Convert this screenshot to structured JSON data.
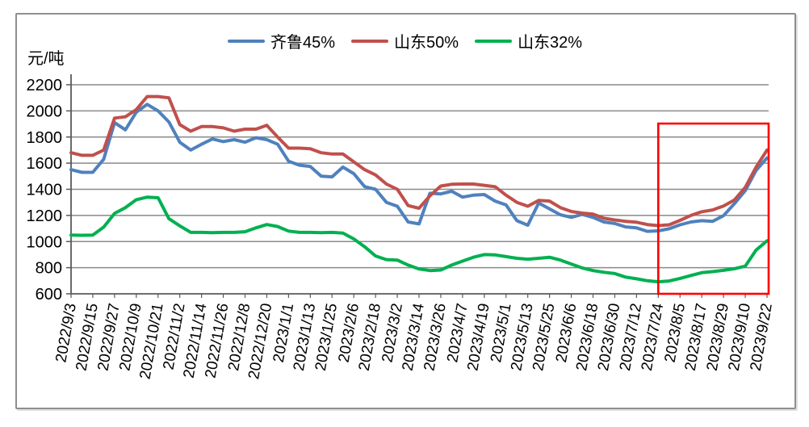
{
  "chart": {
    "unit_label": "元/吨",
    "colors": {
      "qilu45": "#4f81bd",
      "shandong50": "#c0504d",
      "shandong32": "#00b050",
      "highlight_box": "#ff0000",
      "gridline": "#8a8a8a",
      "axis": "#595959",
      "figure_border": "#8f8f8f"
    },
    "y_axis": {
      "min": 600,
      "max": 2200,
      "step": 200,
      "tick_labels": [
        "2200",
        "2000",
        "1800",
        "1600",
        "1400",
        "1200",
        "1000",
        "800",
        "600"
      ]
    },
    "x_axis_visible_labels": [
      "2022/9/3",
      "2022/9/15",
      "2022/9/27",
      "2022/10/9",
      "2022/10/21",
      "2022/11/2",
      "2022/11/14",
      "2022/11/26",
      "2022/12/8",
      "2022/12/20",
      "2023/1/1",
      "2023/1/13",
      "2023/1/25",
      "2023/2/6",
      "2023/2/18",
      "2023/3/2",
      "2023/3/14",
      "2023/3/26",
      "2023/4/7",
      "2023/4/19",
      "2023/5/1",
      "2023/5/13",
      "2023/5/25",
      "2023/6/6",
      "2023/6/18",
      "2023/6/30",
      "2023/7/12",
      "2023/7/24",
      "2023/8/5",
      "2023/8/17",
      "2023/8/29",
      "2023/9/10",
      "2023/9/22"
    ],
    "highlight_region": {
      "from": "2023/7/24",
      "to": "2023/9/22",
      "top_value": 1903,
      "bottom_value": 600
    }
  },
  "chart_data": {
    "type": "line",
    "title": "",
    "ylabel": "元/吨",
    "xlabel": "",
    "ylim": [
      600,
      2200
    ],
    "y_step": 200,
    "grid": true,
    "legend_position": "top-center",
    "x": [
      "2022/9/3",
      "2022/9/9",
      "2022/9/15",
      "2022/9/21",
      "2022/9/27",
      "2022/10/3",
      "2022/10/9",
      "2022/10/15",
      "2022/10/21",
      "2022/10/27",
      "2022/11/2",
      "2022/11/8",
      "2022/11/14",
      "2022/11/20",
      "2022/11/26",
      "2022/12/2",
      "2022/12/8",
      "2022/12/14",
      "2022/12/20",
      "2022/12/26",
      "2023/1/1",
      "2023/1/7",
      "2023/1/13",
      "2023/1/19",
      "2023/1/25",
      "2023/1/31",
      "2023/2/6",
      "2023/2/12",
      "2023/2/18",
      "2023/2/24",
      "2023/3/2",
      "2023/3/8",
      "2023/3/14",
      "2023/3/20",
      "2023/3/26",
      "2023/4/1",
      "2023/4/7",
      "2023/4/13",
      "2023/4/19",
      "2023/4/25",
      "2023/5/1",
      "2023/5/7",
      "2023/5/13",
      "2023/5/19",
      "2023/5/25",
      "2023/5/31",
      "2023/6/6",
      "2023/6/12",
      "2023/6/18",
      "2023/6/24",
      "2023/6/30",
      "2023/7/6",
      "2023/7/12",
      "2023/7/18",
      "2023/7/24",
      "2023/7/30",
      "2023/8/5",
      "2023/8/11",
      "2023/8/17",
      "2023/8/23",
      "2023/8/29",
      "2023/9/4",
      "2023/9/10",
      "2023/9/16",
      "2023/9/22"
    ],
    "series": [
      {
        "name": "齐鲁45%",
        "color": "#4f81bd",
        "values": [
          1550,
          1530,
          1530,
          1630,
          1910,
          1855,
          1990,
          2050,
          2000,
          1915,
          1760,
          1700,
          1745,
          1785,
          1765,
          1780,
          1760,
          1795,
          1780,
          1745,
          1615,
          1585,
          1575,
          1500,
          1495,
          1570,
          1520,
          1420,
          1400,
          1300,
          1270,
          1150,
          1135,
          1370,
          1365,
          1385,
          1340,
          1355,
          1360,
          1310,
          1280,
          1160,
          1125,
          1295,
          1250,
          1205,
          1185,
          1208,
          1185,
          1150,
          1138,
          1112,
          1105,
          1078,
          1082,
          1098,
          1128,
          1150,
          1160,
          1155,
          1198,
          1290,
          1390,
          1545,
          1640
        ]
      },
      {
        "name": "山东50%",
        "color": "#c0504d",
        "values": [
          1680,
          1660,
          1660,
          1700,
          1945,
          1955,
          2010,
          2110,
          2110,
          2100,
          1895,
          1845,
          1880,
          1880,
          1870,
          1845,
          1860,
          1860,
          1890,
          1800,
          1715,
          1715,
          1710,
          1680,
          1670,
          1670,
          1610,
          1550,
          1510,
          1440,
          1400,
          1275,
          1255,
          1350,
          1425,
          1438,
          1440,
          1440,
          1430,
          1420,
          1355,
          1300,
          1270,
          1315,
          1310,
          1260,
          1230,
          1218,
          1210,
          1178,
          1165,
          1155,
          1148,
          1130,
          1122,
          1128,
          1162,
          1200,
          1228,
          1242,
          1272,
          1318,
          1415,
          1570,
          1700
        ]
      },
      {
        "name": "山东32%",
        "color": "#00b050",
        "values": [
          1050,
          1048,
          1050,
          1110,
          1215,
          1260,
          1320,
          1340,
          1335,
          1175,
          1120,
          1070,
          1070,
          1068,
          1070,
          1070,
          1075,
          1105,
          1130,
          1115,
          1080,
          1070,
          1070,
          1068,
          1070,
          1065,
          1020,
          960,
          890,
          862,
          858,
          820,
          790,
          778,
          782,
          820,
          850,
          880,
          900,
          898,
          885,
          872,
          865,
          872,
          880,
          858,
          828,
          798,
          778,
          765,
          755,
          728,
          715,
          700,
          692,
          698,
          718,
          740,
          762,
          770,
          780,
          792,
          812,
          935,
          1005
        ]
      }
    ],
    "annotations": [
      {
        "type": "rect",
        "from": "2023/7/24",
        "to": "2023/9/22",
        "y_top": 1903,
        "y_bottom": 600,
        "color": "#ff0000"
      }
    ]
  }
}
